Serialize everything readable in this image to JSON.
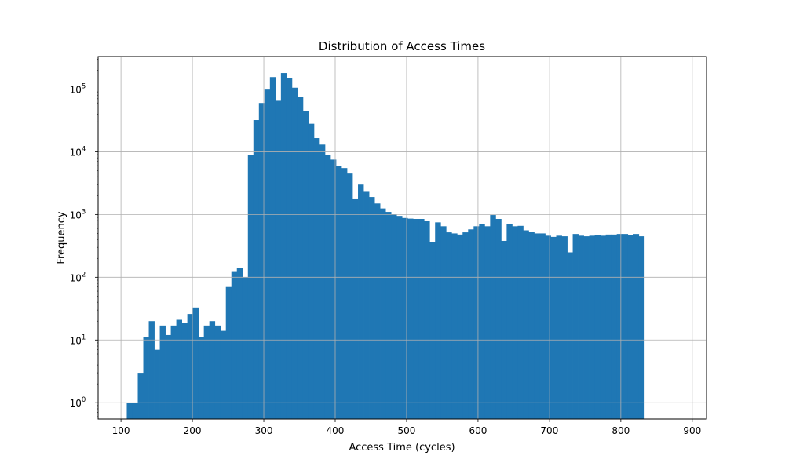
{
  "chart_data": {
    "type": "bar",
    "title": "Distribution of Access Times",
    "xlabel": "Access Time (cycles)",
    "ylabel": "Frequency",
    "yscale": "log",
    "xlim": [
      68,
      920
    ],
    "ylim": [
      0.55,
      330000
    ],
    "xticks": [
      100,
      200,
      300,
      400,
      500,
      600,
      700,
      800,
      900
    ],
    "yticks": [
      {
        "value": 1,
        "base": "10",
        "exp": "0"
      },
      {
        "value": 10,
        "base": "10",
        "exp": "1"
      },
      {
        "value": 100,
        "base": "10",
        "exp": "2"
      },
      {
        "value": 1000,
        "base": "10",
        "exp": "3"
      },
      {
        "value": 10000,
        "base": "10",
        "exp": "4"
      },
      {
        "value": 100000,
        "base": "10",
        "exp": "5"
      }
    ],
    "grid": true,
    "bar_color": "#1f77b4",
    "grid_color": "#b0b0b0",
    "bins": {
      "start": 108.1,
      "width": 7.71
    },
    "values": [
      1,
      1,
      3,
      11,
      20,
      7,
      17,
      12,
      17,
      21,
      19,
      26,
      33,
      11,
      17,
      20,
      17,
      14,
      70,
      125,
      140,
      100,
      9000,
      32000,
      60000,
      98000,
      155000,
      65000,
      180000,
      150000,
      105000,
      75000,
      45000,
      28000,
      16500,
      13000,
      9000,
      7500,
      6000,
      5500,
      4500,
      1800,
      3000,
      2300,
      1900,
      1500,
      1250,
      1100,
      1000,
      950,
      880,
      860,
      850,
      850,
      780,
      360,
      750,
      650,
      520,
      500,
      480,
      520,
      580,
      650,
      700,
      650,
      980,
      850,
      380,
      700,
      650,
      660,
      560,
      530,
      500,
      500,
      460,
      440,
      460,
      450,
      250,
      490,
      460,
      450,
      460,
      470,
      460,
      480,
      480,
      490,
      490,
      470,
      490,
      450
    ]
  }
}
